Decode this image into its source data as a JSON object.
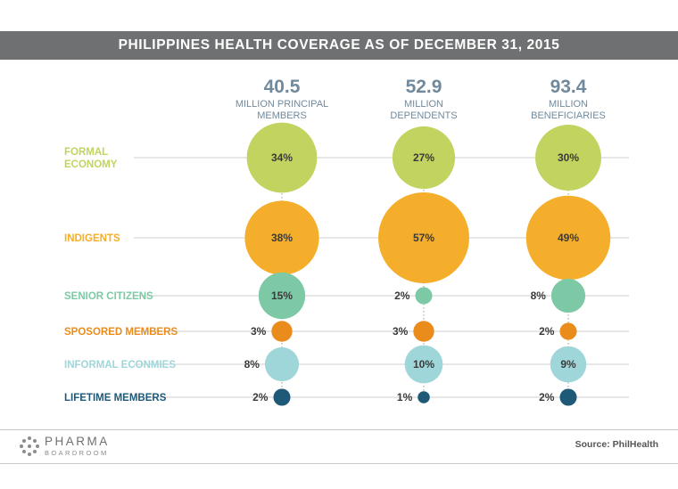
{
  "title": "PHILIPPINES HEALTH COVERAGE AS OF DECEMBER 31, 2015",
  "source": "Source: PhilHealth",
  "logo": {
    "primary": "PHARMA",
    "secondary": "BOARDROOM"
  },
  "chart_data": {
    "type": "bubble-matrix",
    "columns": [
      {
        "value": "40.5",
        "label_lines": [
          "MILLION PRINCIPAL",
          "MEMBERS"
        ]
      },
      {
        "value": "52.9",
        "label_lines": [
          "MILLION",
          "DEPENDENTS"
        ]
      },
      {
        "value": "93.4",
        "label_lines": [
          "MILLION",
          "BENEFICIARIES"
        ]
      }
    ],
    "rows": [
      {
        "label_lines": [
          "FORMAL",
          "ECONOMY"
        ],
        "color": "#c3d360",
        "values": [
          34,
          27,
          30
        ]
      },
      {
        "label_lines": [
          "INDIGENTS"
        ],
        "color": "#f5ae2b",
        "values": [
          38,
          57,
          49
        ]
      },
      {
        "label_lines": [
          "SENIOR CITIZENS"
        ],
        "color": "#7ec9a5",
        "values": [
          15,
          2,
          8
        ]
      },
      {
        "label_lines": [
          "SPOSORED MEMBERS"
        ],
        "color": "#ea8c1b",
        "values": [
          3,
          3,
          2
        ]
      },
      {
        "label_lines": [
          "INFORMAL ECONMIES"
        ],
        "color": "#9fd6d9",
        "values": [
          8,
          10,
          9
        ]
      },
      {
        "label_lines": [
          "LIFETIME MEMBERS"
        ],
        "color": "#1e5a78",
        "values": [
          2,
          1,
          2
        ]
      }
    ],
    "value_suffix": "%",
    "header_color": "#71899b"
  }
}
